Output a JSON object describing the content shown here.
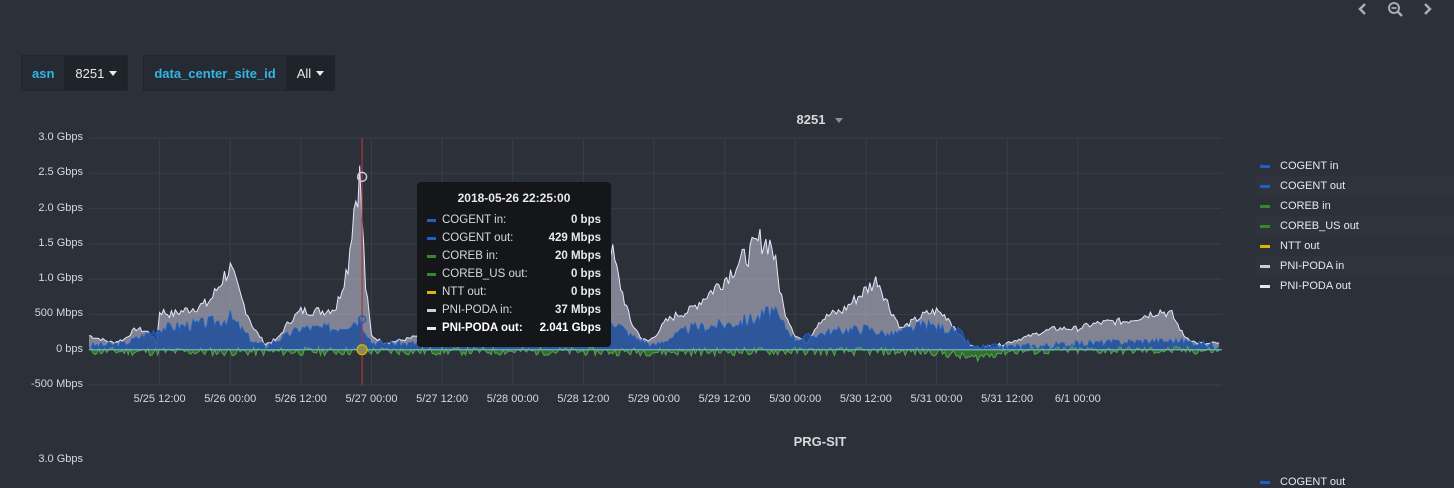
{
  "nav": {
    "prev_icon": "chevron-left-icon",
    "zoom_icon": "zoom-out-icon",
    "next_icon": "chevron-right-icon"
  },
  "variables": [
    {
      "label": "asn",
      "value": "8251"
    },
    {
      "label": "data_center_site_id",
      "value": "All"
    }
  ],
  "panel1": {
    "title": "8251",
    "y_ticks": [
      "3.0 Gbps",
      "2.5 Gbps",
      "2.0 Gbps",
      "1.5 Gbps",
      "1.0 Gbps",
      "500 Mbps",
      "0 bps",
      "-500 Mbps"
    ],
    "x_ticks": [
      "5/25 12:00",
      "5/26 00:00",
      "5/26 12:00",
      "5/27 00:00",
      "5/27 12:00",
      "5/28 00:00",
      "5/28 12:00",
      "5/29 00:00",
      "5/29 12:00",
      "5/30 00:00",
      "5/30 12:00",
      "5/31 00:00",
      "5/31 12:00",
      "6/1 00:00"
    ],
    "legend": [
      {
        "name": "COGENT in",
        "color": "#1f60c4"
      },
      {
        "name": "COGENT out",
        "color": "#1f60c4"
      },
      {
        "name": "COREB in",
        "color": "#37872d"
      },
      {
        "name": "COREB_US out",
        "color": "#37872d"
      },
      {
        "name": "NTT out",
        "color": "#e0b400"
      },
      {
        "name": "PNI-PODA in",
        "color": "#ccccdc"
      },
      {
        "name": "PNI-PODA out",
        "color": "#e6e6fa"
      }
    ],
    "tooltip": {
      "time": "2018-05-26 22:25:00",
      "rows": [
        {
          "name": "COGENT in:",
          "value": "0 bps",
          "color": "#1f60c4"
        },
        {
          "name": "COGENT out:",
          "value": "429 Mbps",
          "color": "#1f60c4"
        },
        {
          "name": "COREB in:",
          "value": "20 Mbps",
          "color": "#37872d"
        },
        {
          "name": "COREB_US out:",
          "value": "0 bps",
          "color": "#37872d"
        },
        {
          "name": "NTT out:",
          "value": "0 bps",
          "color": "#e0b400"
        },
        {
          "name": "PNI-PODA in:",
          "value": "37 Mbps",
          "color": "#ccccdc"
        },
        {
          "name": "PNI-PODA out:",
          "value": "2.041 Gbps",
          "color": "#e6e6fa"
        }
      ]
    }
  },
  "chart_data": {
    "type": "area",
    "title": "8251",
    "x_unit": "hours since 5/25 00:00",
    "ylim": [
      -0.5,
      3.0
    ],
    "y_unit": "Gbps",
    "grid": true,
    "legend_position": "right",
    "series": [
      {
        "name": "PNI-PODA out",
        "x": [
          0,
          4,
          6,
          8,
          10,
          11.5,
          12,
          14,
          16,
          18,
          20,
          21,
          22,
          23,
          24,
          26,
          28,
          30,
          32,
          34,
          36,
          38,
          40,
          42,
          44,
          45,
          46,
          47,
          48,
          50,
          52,
          54,
          56,
          58,
          60,
          62,
          64,
          66,
          68,
          70,
          71,
          72,
          74,
          76,
          78,
          80,
          82,
          84,
          86,
          88,
          90,
          92,
          94,
          95,
          96,
          98,
          100,
          102,
          104,
          106,
          108,
          110,
          112,
          114,
          116,
          118,
          120,
          122,
          124,
          126,
          128,
          130,
          132,
          134,
          136,
          138,
          140,
          142,
          144,
          146,
          148,
          150,
          152,
          153,
          154,
          156,
          158,
          160,
          162,
          164,
          166,
          168,
          170,
          172,
          174,
          176,
          178,
          180,
          182,
          184,
          186,
          188,
          190,
          192
        ],
        "values": [
          0.2,
          0.1,
          0.15,
          0.3,
          0.25,
          0.1,
          0.55,
          0.5,
          0.55,
          0.6,
          0.65,
          0.75,
          0.9,
          1.05,
          1.15,
          0.7,
          0.3,
          0.08,
          0.15,
          0.4,
          0.55,
          0.55,
          0.55,
          0.6,
          1.2,
          2.0,
          2.45,
          0.9,
          0.2,
          0.1,
          0.12,
          0.15,
          0.2,
          0.25,
          0.2,
          0.15,
          0.25,
          0.45,
          0.55,
          0.6,
          0.4,
          0.25,
          0.1,
          0.45,
          0.6,
          0.75,
          0.9,
          1.2,
          1.45,
          1.7,
          1.0,
          0.4,
          0.15,
          0.12,
          0.18,
          0.4,
          0.5,
          0.55,
          0.7,
          0.85,
          1.0,
          1.2,
          1.35,
          1.55,
          1.5,
          0.6,
          0.2,
          0.1,
          0.4,
          0.5,
          0.55,
          0.7,
          0.85,
          1.0,
          0.6,
          0.3,
          0.4,
          0.5,
          0.55,
          0.45,
          0.2,
          0.05,
          0.02,
          0.05,
          0.05,
          0.1,
          0.15,
          0.2,
          0.25,
          0.3,
          0.3,
          0.3,
          0.35,
          0.38,
          0.4,
          0.4,
          0.45,
          0.5,
          0.55,
          0.5,
          0.2,
          0.1,
          0.08,
          0.1
        ]
      },
      {
        "name": "COGENT out",
        "x": [
          0,
          6,
          12,
          18,
          22,
          24,
          28,
          30,
          36,
          42,
          46,
          48,
          54,
          60,
          66,
          72,
          78,
          84,
          88,
          92,
          96,
          102,
          108,
          114,
          116,
          120,
          126,
          132,
          136,
          142,
          148,
          150,
          156,
          162,
          168,
          174,
          180,
          186,
          192
        ],
        "values": [
          0.05,
          0.08,
          0.3,
          0.35,
          0.4,
          0.45,
          0.1,
          0.05,
          0.3,
          0.3,
          0.43,
          0.1,
          0.08,
          0.1,
          0.25,
          0.15,
          0.3,
          0.4,
          0.5,
          0.2,
          0.05,
          0.3,
          0.35,
          0.45,
          0.55,
          0.15,
          0.25,
          0.3,
          0.2,
          0.35,
          0.25,
          0.03,
          0.04,
          0.05,
          0.08,
          0.1,
          0.12,
          0.12,
          0.05
        ]
      },
      {
        "name": "COREB in",
        "x": [
          0,
          24,
          48,
          72,
          96,
          120,
          144,
          150,
          156,
          168,
          192
        ],
        "values": [
          -0.02,
          -0.03,
          -0.02,
          -0.02,
          -0.03,
          -0.02,
          -0.03,
          -0.12,
          -0.02,
          -0.01,
          -0.01
        ]
      }
    ],
    "cursor_x": 46.4
  },
  "panel2": {
    "title": "PRG-SIT",
    "y_ticks": [
      "3.0 Gbps"
    ],
    "legend": [
      {
        "name": "COGENT out",
        "color": "#1f60c4"
      }
    ]
  }
}
